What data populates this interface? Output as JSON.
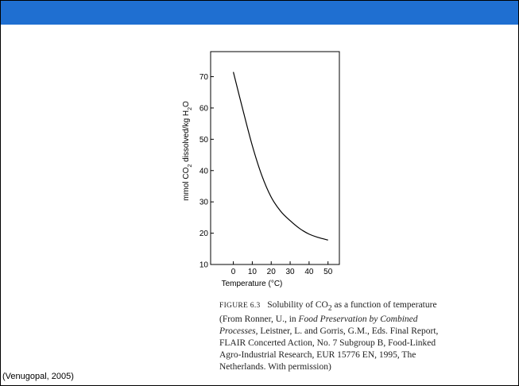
{
  "chart_data": {
    "type": "line",
    "xlabel": "Temperature (°C)",
    "ylabel": "mmol CO2 dissolved/kg H2O",
    "xlim": [
      -12,
      56
    ],
    "ylim": [
      10,
      78
    ],
    "x_ticks": [
      0,
      10,
      20,
      30,
      40,
      50
    ],
    "y_ticks": [
      10,
      20,
      30,
      40,
      50,
      60,
      70
    ],
    "grid": false,
    "series": [
      {
        "x": [
          0,
          5,
          10,
          15,
          20,
          25,
          30,
          35,
          40,
          45,
          50
        ],
        "values": [
          71.5,
          59.5,
          48,
          38.5,
          31.5,
          27,
          24,
          21.5,
          19.7,
          18.6,
          17.8
        ]
      }
    ]
  },
  "caption": {
    "label": "FIGURE 6.3",
    "text_1": "Solubility of CO",
    "sub_1": "2",
    "text_2": " as a function of temperature (From Ronner, U., in ",
    "italic_1": "Food Preservation by Combined Processes",
    "text_3": ", Leistner, L. and Gorris, G.M., Eds. Final Report, FLAIR Concerted Action, No. 7 Subgroup B, Food-Linked Agro-Industrial Research, EUR 15776 EN, 1995, The Netherlands. With permission)"
  },
  "source": "(Venugopal, 2005)",
  "colors": {
    "header": "#1f6fd1",
    "line": "#000000"
  }
}
